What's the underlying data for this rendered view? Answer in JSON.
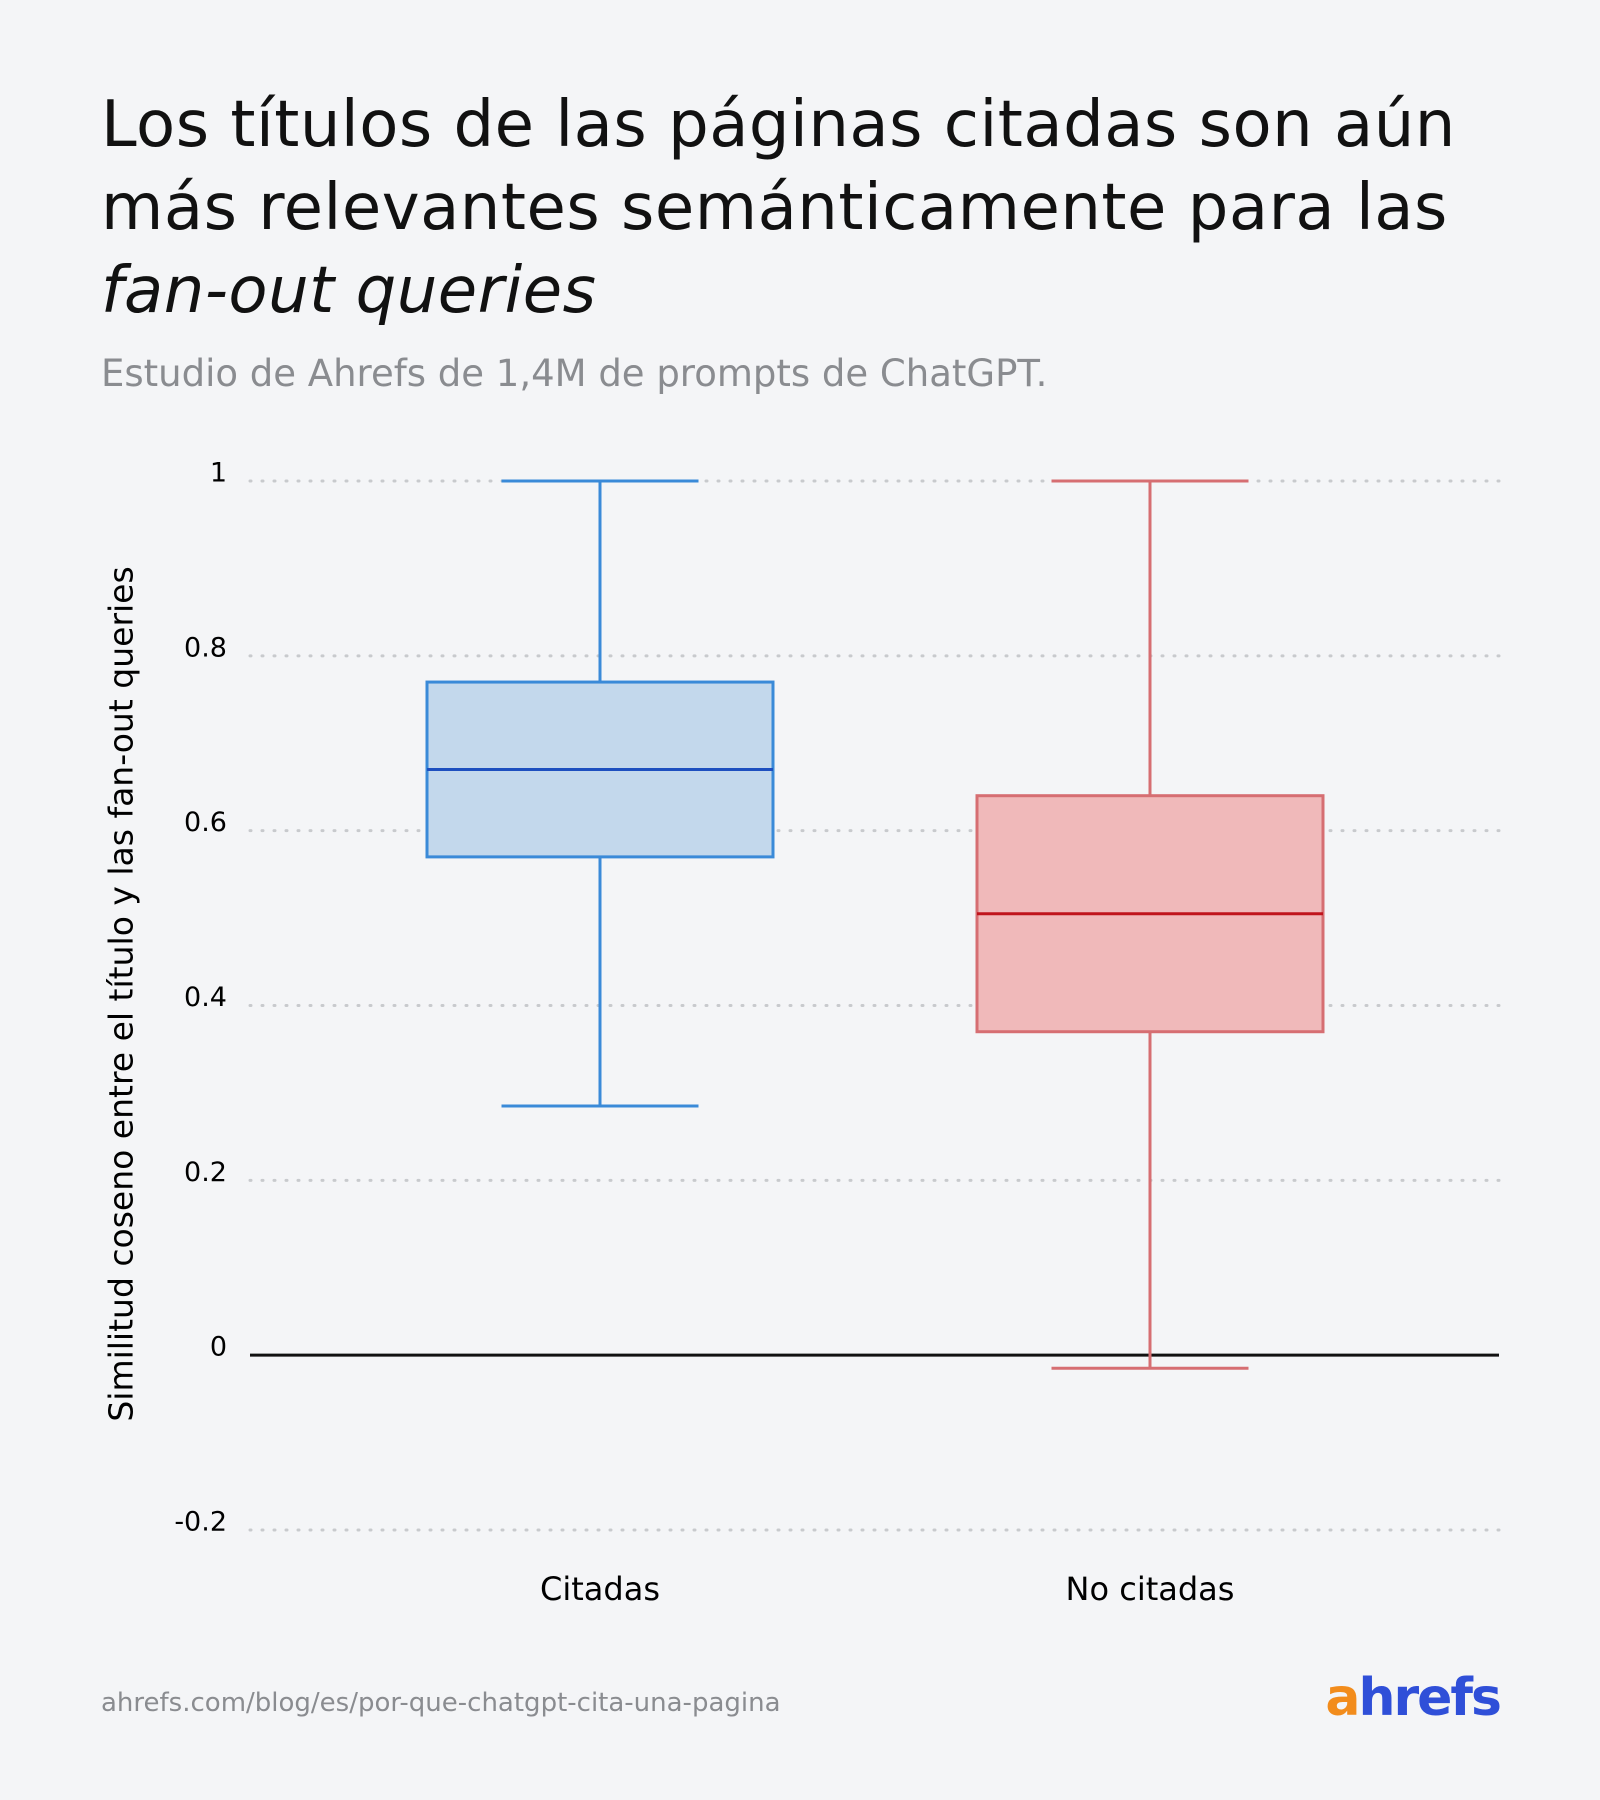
{
  "chart_data": {
    "type": "box",
    "title": [
      "Los títulos de las páginas citadas son aún más relevantes semánticamente para las ",
      "fan-out queries"
    ],
    "subtitle": "Estudio de Ahrefs de 1,4M de prompts de ChatGPT.",
    "y_label": "Similitud coseno entre el título y las fan-out queries",
    "categories": [
      "Citadas",
      "No citadas"
    ],
    "boxes": [
      {
        "min": 0.285,
        "q1": 0.57,
        "median": 0.67,
        "q3": 0.77,
        "max": 1,
        "color": "#3a8ad8",
        "fill": "#c3d8ec",
        "median_color": "#1d4fbf"
      },
      {
        "min": -0.015,
        "q1": 0.37,
        "median": 0.505,
        "q3": 0.64,
        "max": 1,
        "color": "#d66e72",
        "fill": "#f0b9ba",
        "median_color": "#c0141c"
      }
    ],
    "ylim": [
      -0.2,
      1
    ],
    "yticks": [
      -0.2,
      0,
      0.2,
      0.4,
      0.6,
      0.8,
      1
    ],
    "grid": true,
    "source": "ahrefs.com/blog/es/por-que-chatgpt-cita-una-pagina",
    "logo": "ahrefs"
  }
}
